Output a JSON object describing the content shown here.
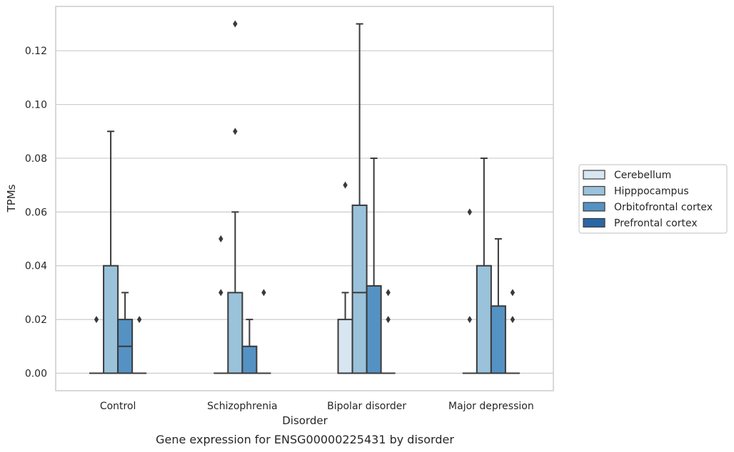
{
  "chart_data": {
    "type": "box",
    "xlabel": "Disorder",
    "ylabel": "TPMs",
    "caption": "Gene expression for ENSG00000225431 by disorder",
    "ylim": [
      -0.0065,
      0.1365
    ],
    "yticks": [
      0.0,
      0.02,
      0.04,
      0.06,
      0.08,
      0.1,
      0.12
    ],
    "ytick_labels": [
      "0.00",
      "0.02",
      "0.04",
      "0.06",
      "0.08",
      "0.10",
      "0.12"
    ],
    "grid": true,
    "legend_placement": "right",
    "categories": [
      "Control",
      "Schizophrenia",
      "Bipolar disorder",
      "Major depression"
    ],
    "series": [
      {
        "name": "Cerebellum",
        "color": "#d8e6f2",
        "boxes": [
          {
            "q1": 0,
            "median": 0,
            "q3": 0,
            "whisker_low": 0,
            "whisker_high": 0,
            "outliers": [
              0.02
            ]
          },
          {
            "q1": 0,
            "median": 0,
            "q3": 0,
            "whisker_low": 0,
            "whisker_high": 0,
            "outliers": [
              0.03,
              0.05
            ]
          },
          {
            "q1": 0,
            "median": 0,
            "q3": 0.02,
            "whisker_low": 0,
            "whisker_high": 0.03,
            "outliers": [
              0.07
            ]
          },
          {
            "q1": 0,
            "median": 0,
            "q3": 0,
            "whisker_low": 0,
            "whisker_high": 0,
            "outliers": [
              0.02,
              0.06
            ]
          }
        ]
      },
      {
        "name": "Hipppocampus",
        "color": "#9ac2db",
        "boxes": [
          {
            "q1": 0,
            "median": 0,
            "q3": 0.04,
            "whisker_low": 0,
            "whisker_high": 0.09,
            "outliers": []
          },
          {
            "q1": 0,
            "median": 0,
            "q3": 0.03,
            "whisker_low": 0,
            "whisker_high": 0.06,
            "outliers": [
              0.09,
              0.13
            ]
          },
          {
            "q1": 0,
            "median": 0.03,
            "q3": 0.0625,
            "whisker_low": 0,
            "whisker_high": 0.13,
            "outliers": []
          },
          {
            "q1": 0,
            "median": 0,
            "q3": 0.04,
            "whisker_low": 0,
            "whisker_high": 0.08,
            "outliers": []
          }
        ]
      },
      {
        "name": "Orbitofrontal cortex",
        "color": "#5592c4",
        "boxes": [
          {
            "q1": 0,
            "median": 0.01,
            "q3": 0.02,
            "whisker_low": 0,
            "whisker_high": 0.03,
            "outliers": []
          },
          {
            "q1": 0,
            "median": 0,
            "q3": 0.01,
            "whisker_low": 0,
            "whisker_high": 0.02,
            "outliers": []
          },
          {
            "q1": 0,
            "median": 0,
            "q3": 0.0325,
            "whisker_low": 0,
            "whisker_high": 0.08,
            "outliers": []
          },
          {
            "q1": 0,
            "median": 0,
            "q3": 0.025,
            "whisker_low": 0,
            "whisker_high": 0.05,
            "outliers": []
          }
        ]
      },
      {
        "name": "Prefrontal cortex",
        "color": "#2a66a5",
        "boxes": [
          {
            "q1": 0,
            "median": 0,
            "q3": 0,
            "whisker_low": 0,
            "whisker_high": 0,
            "outliers": [
              0.02
            ]
          },
          {
            "q1": 0,
            "median": 0,
            "q3": 0,
            "whisker_low": 0,
            "whisker_high": 0,
            "outliers": [
              0.03
            ]
          },
          {
            "q1": 0,
            "median": 0,
            "q3": 0,
            "whisker_low": 0,
            "whisker_high": 0,
            "outliers": [
              0.02,
              0.03
            ]
          },
          {
            "q1": 0,
            "median": 0,
            "q3": 0,
            "whisker_low": 0,
            "whisker_high": 0,
            "outliers": [
              0.02,
              0.03
            ]
          }
        ]
      }
    ]
  }
}
